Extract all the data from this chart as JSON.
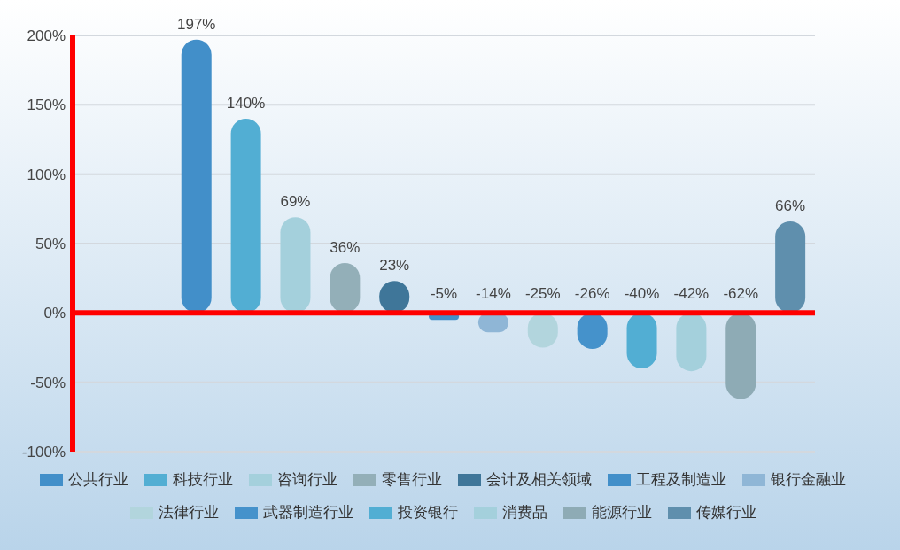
{
  "chart_data": {
    "type": "bar",
    "categories": [
      null,
      null,
      null,
      null,
      null,
      null,
      null,
      null,
      null,
      null,
      null,
      null,
      null,
      null,
      null
    ],
    "ylim": [
      -100,
      200
    ],
    "yticks": [
      {
        "value": -100,
        "label": "-100%"
      },
      {
        "value": -50,
        "label": "-50%"
      },
      {
        "value": 0,
        "label": "0%"
      },
      {
        "value": 50,
        "label": "50%"
      },
      {
        "value": 100,
        "label": "100%"
      },
      {
        "value": 150,
        "label": "150%"
      },
      {
        "value": 200,
        "label": "200%"
      }
    ],
    "grid": "y",
    "stacked": true,
    "legend": "bottom",
    "ref_lines": [
      {
        "axis": "y",
        "value": 0,
        "color": "#ff0000"
      }
    ],
    "series": [
      {
        "name": "公共行业",
        "color": "#428fc9",
        "values": [
          null,
          null,
          197,
          null,
          null,
          null,
          null,
          null,
          null,
          null,
          null,
          null,
          null,
          null,
          null
        ],
        "value_labels": [
          null,
          null,
          "197%",
          null,
          null,
          null,
          null,
          null,
          null,
          null,
          null,
          null,
          null,
          null,
          null
        ]
      },
      {
        "name": "科技行业",
        "color": "#52aed3",
        "values": [
          null,
          null,
          null,
          140,
          null,
          null,
          null,
          null,
          null,
          null,
          null,
          null,
          null,
          null,
          null
        ],
        "value_labels": [
          null,
          null,
          null,
          "140%",
          null,
          null,
          null,
          null,
          null,
          null,
          null,
          null,
          null,
          null,
          null
        ]
      },
      {
        "name": "咨询行业",
        "color": "#a4d0dc",
        "values": [
          null,
          null,
          null,
          null,
          69,
          null,
          null,
          null,
          null,
          null,
          null,
          null,
          null,
          null,
          null
        ],
        "value_labels": [
          null,
          null,
          null,
          null,
          "69%",
          null,
          null,
          null,
          null,
          null,
          null,
          null,
          null,
          null,
          null
        ]
      },
      {
        "name": "零售行业",
        "color": "#93afb8",
        "values": [
          null,
          null,
          null,
          null,
          null,
          36,
          null,
          null,
          null,
          null,
          null,
          null,
          null,
          null,
          null
        ],
        "value_labels": [
          null,
          null,
          null,
          null,
          null,
          "36%",
          null,
          null,
          null,
          null,
          null,
          null,
          null,
          null,
          null
        ]
      },
      {
        "name": "会计及相关领域",
        "color": "#3f7699",
        "values": [
          null,
          null,
          null,
          null,
          null,
          null,
          23,
          null,
          null,
          null,
          null,
          null,
          null,
          null,
          null
        ],
        "value_labels": [
          null,
          null,
          null,
          null,
          null,
          null,
          "23%",
          null,
          null,
          null,
          null,
          null,
          null,
          null,
          null
        ]
      },
      {
        "name": "工程及制造业",
        "color": "#428fc9",
        "values": [
          null,
          null,
          null,
          null,
          null,
          null,
          null,
          -5,
          null,
          null,
          null,
          null,
          null,
          null,
          null
        ],
        "value_labels": [
          null,
          null,
          null,
          null,
          null,
          null,
          null,
          "-5%",
          null,
          null,
          null,
          null,
          null,
          null,
          null
        ]
      },
      {
        "name": "银行金融业",
        "color": "#8fb6d6",
        "values": [
          null,
          null,
          null,
          null,
          null,
          null,
          null,
          null,
          -14,
          null,
          null,
          null,
          null,
          null,
          null
        ],
        "value_labels": [
          null,
          null,
          null,
          null,
          null,
          null,
          null,
          null,
          "-14%",
          null,
          null,
          null,
          null,
          null,
          null
        ]
      },
      {
        "name": "法律行业",
        "color": "#b2d5dd",
        "values": [
          null,
          null,
          null,
          null,
          null,
          null,
          null,
          null,
          null,
          -25,
          null,
          null,
          null,
          null,
          null
        ],
        "value_labels": [
          null,
          null,
          null,
          null,
          null,
          null,
          null,
          null,
          null,
          "-25%",
          null,
          null,
          null,
          null,
          null
        ]
      },
      {
        "name": "武器制造行业",
        "color": "#4592cb",
        "values": [
          null,
          null,
          null,
          null,
          null,
          null,
          null,
          null,
          null,
          null,
          -26,
          null,
          null,
          null,
          null
        ],
        "value_labels": [
          null,
          null,
          null,
          null,
          null,
          null,
          null,
          null,
          null,
          null,
          "-26%",
          null,
          null,
          null,
          null
        ]
      },
      {
        "name": "投资银行",
        "color": "#52aed3",
        "values": [
          null,
          null,
          null,
          null,
          null,
          null,
          null,
          null,
          null,
          null,
          null,
          -40,
          null,
          null,
          null
        ],
        "value_labels": [
          null,
          null,
          null,
          null,
          null,
          null,
          null,
          null,
          null,
          null,
          null,
          "-40%",
          null,
          null,
          null
        ]
      },
      {
        "name": "消费品",
        "color": "#a4d0dc",
        "values": [
          null,
          null,
          null,
          null,
          null,
          null,
          null,
          null,
          null,
          null,
          null,
          null,
          -42,
          null,
          null
        ],
        "value_labels": [
          null,
          null,
          null,
          null,
          null,
          null,
          null,
          null,
          null,
          null,
          null,
          null,
          "-42%",
          null,
          null
        ]
      },
      {
        "name": "能源行业",
        "color": "#8eabb5",
        "values": [
          null,
          null,
          null,
          null,
          null,
          null,
          null,
          null,
          null,
          null,
          null,
          null,
          null,
          -62,
          null
        ],
        "value_labels": [
          null,
          null,
          null,
          null,
          null,
          null,
          null,
          null,
          null,
          null,
          null,
          null,
          null,
          "-62%",
          null
        ]
      },
      {
        "name": "传媒行业",
        "color": "#5f8fad",
        "values": [
          null,
          null,
          null,
          null,
          null,
          null,
          null,
          null,
          null,
          null,
          null,
          null,
          null,
          null,
          66
        ],
        "value_labels": [
          null,
          null,
          null,
          null,
          null,
          null,
          null,
          null,
          null,
          null,
          null,
          null,
          null,
          null,
          "66%"
        ]
      }
    ]
  }
}
